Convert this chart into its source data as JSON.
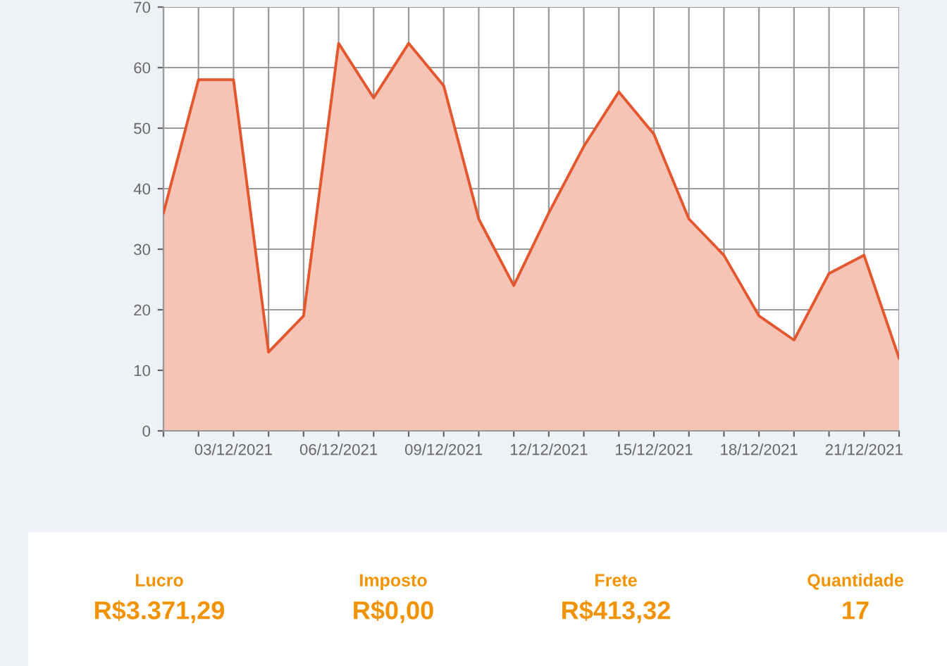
{
  "chart_data": [
    {
      "type": "area",
      "x": [
        "2021-12-01",
        "2021-12-02",
        "2021-12-03",
        "2021-12-04",
        "2021-12-05",
        "2021-12-06",
        "2021-12-07",
        "2021-12-08",
        "2021-12-09",
        "2021-12-10",
        "2021-12-11",
        "2021-12-12",
        "2021-12-13",
        "2021-12-14",
        "2021-12-15",
        "2021-12-16",
        "2021-12-17",
        "2021-12-18",
        "2021-12-19",
        "2021-12-20",
        "2021-12-21",
        "2021-12-22"
      ],
      "series": [
        {
          "color": "#e4572e",
          "values": [
            36,
            58,
            58,
            13,
            19,
            64,
            55,
            64,
            57,
            35,
            24,
            36,
            47,
            56,
            49,
            35,
            29,
            19,
            15,
            26,
            29,
            12
          ]
        }
      ],
      "xlim": [
        "2021-12-01",
        "2021-12-22"
      ],
      "xticks": [
        {
          "value": "2021-12-01",
          "label": null
        },
        {
          "value": "2021-12-02",
          "label": null
        },
        {
          "value": "2021-12-03",
          "label": "03/12/2021"
        },
        {
          "value": "2021-12-04",
          "label": null
        },
        {
          "value": "2021-12-05",
          "label": null
        },
        {
          "value": "2021-12-06",
          "label": "06/12/2021"
        },
        {
          "value": "2021-12-07",
          "label": null
        },
        {
          "value": "2021-12-08",
          "label": null
        },
        {
          "value": "2021-12-09",
          "label": "09/12/2021"
        },
        {
          "value": "2021-12-10",
          "label": null
        },
        {
          "value": "2021-12-11",
          "label": null
        },
        {
          "value": "2021-12-12",
          "label": "12/12/2021"
        },
        {
          "value": "2021-12-13",
          "label": null
        },
        {
          "value": "2021-12-14",
          "label": null
        },
        {
          "value": "2021-12-15",
          "label": "15/12/2021"
        },
        {
          "value": "2021-12-16",
          "label": null
        },
        {
          "value": "2021-12-17",
          "label": null
        },
        {
          "value": "2021-12-18",
          "label": "18/12/2021"
        },
        {
          "value": "2021-12-19",
          "label": null
        },
        {
          "value": "2021-12-20",
          "label": null
        },
        {
          "value": "2021-12-21",
          "label": "21/12/2021"
        },
        {
          "value": "2021-12-22",
          "label": null
        }
      ],
      "ylim": [
        0,
        70
      ],
      "yticks": [
        0,
        10,
        20,
        30,
        40,
        50,
        60,
        70
      ],
      "grid": true,
      "legend": false
    },
    {
      "type": "other",
      "annotations": [
        "Lucro",
        "R$3.371,29",
        "Imposto",
        "R$0,00",
        "Frete",
        "R$413,32",
        "Quantidade",
        "17"
      ]
    }
  ]
}
